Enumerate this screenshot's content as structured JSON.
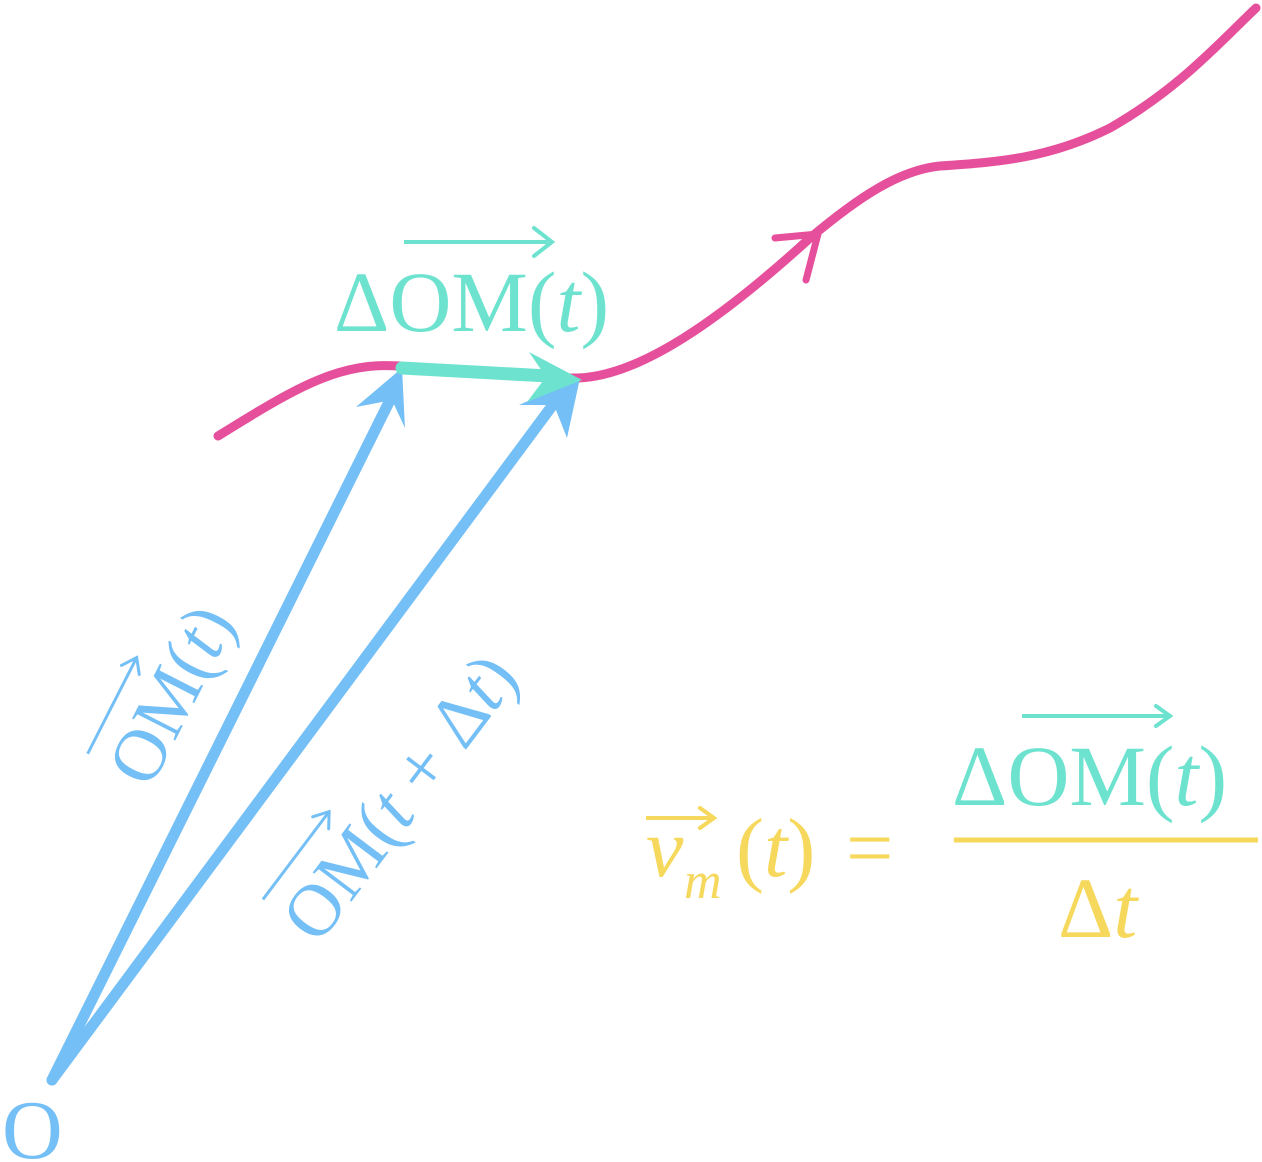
{
  "origin_label": "O",
  "labels": {
    "delta_vector": {
      "delta": "Δ",
      "name": "OM",
      "open": "(",
      "var": "t",
      "close": ")"
    },
    "om_t": {
      "name": "OM",
      "open": "(",
      "var": "t",
      "close": ")"
    },
    "om_t_dt": {
      "name": "OM",
      "open": "(",
      "var": "t",
      "plus": " + ",
      "delta": "Δ",
      "var2": "t",
      "close": ")"
    }
  },
  "formula": {
    "lhs_symbol": "v",
    "lhs_subscript": "m",
    "lhs_open": "(",
    "lhs_var": "t",
    "lhs_close": ")",
    "equals": "=",
    "numerator": {
      "delta": "Δ",
      "name": "OM",
      "open": "(",
      "var": "t",
      "close": ")"
    },
    "denominator": {
      "delta": "Δ",
      "var": "t"
    }
  },
  "colors": {
    "trajectory": "#e64f9b",
    "position_vectors": "#74bff6",
    "displacement": "#6de3cf",
    "formula": "#f6d85c"
  }
}
